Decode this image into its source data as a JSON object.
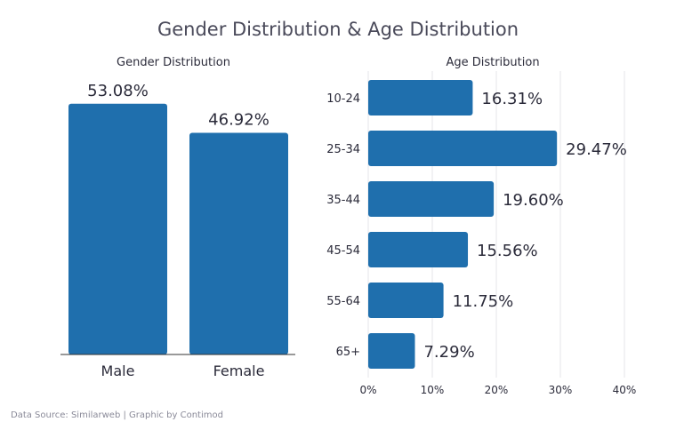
{
  "page": {
    "title": "Gender Distribution & Age Distribution",
    "footer": "Data Source: Similarweb | Graphic by Contimod"
  },
  "colors": {
    "bar": "#1f6fad",
    "title_text": "#4a4a5a",
    "label_text": "#2b2b3a",
    "grid": "#e6e6ea",
    "axis": "#333333",
    "footer_text": "#8a8a98"
  },
  "chart_data": [
    {
      "type": "bar",
      "orientation": "vertical",
      "title": "Gender Distribution",
      "categories": [
        "Male",
        "Female"
      ],
      "values": [
        53.08,
        46.92
      ],
      "value_labels": [
        "53.08%",
        "46.92%"
      ],
      "ylim": [
        0,
        60
      ],
      "grid": false
    },
    {
      "type": "bar",
      "orientation": "horizontal",
      "title": "Age Distribution",
      "categories": [
        "10-24",
        "25-34",
        "35-44",
        "45-54",
        "55-64",
        "65+"
      ],
      "values": [
        16.31,
        29.47,
        19.6,
        15.56,
        11.75,
        7.29
      ],
      "value_labels": [
        "16.31%",
        "29.47%",
        "19.60%",
        "15.56%",
        "11.75%",
        "7.29%"
      ],
      "xlim": [
        0,
        40
      ],
      "xticks": [
        "0%",
        "10%",
        "20%",
        "30%",
        "40%"
      ],
      "grid": true
    }
  ]
}
